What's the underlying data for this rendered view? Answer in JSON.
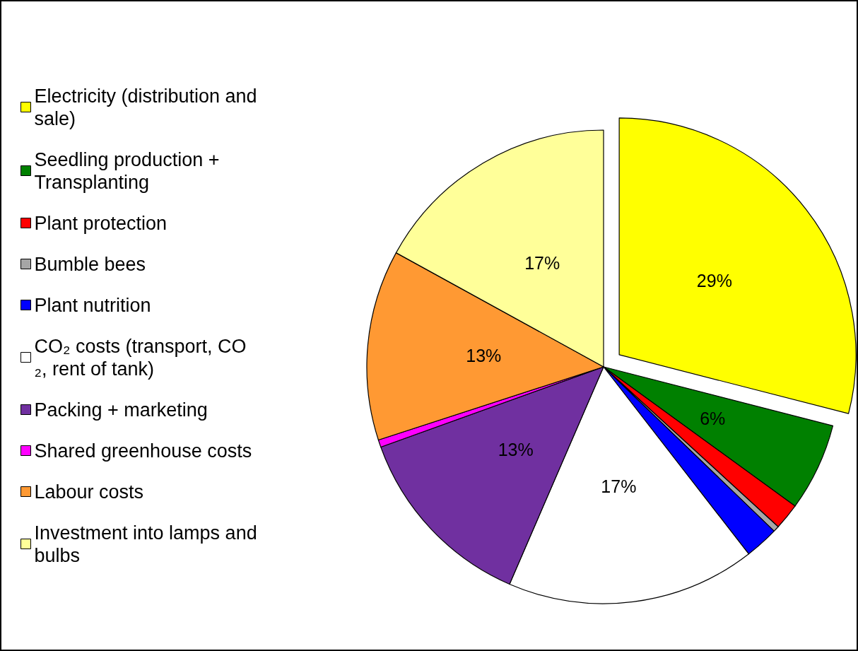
{
  "chart_data": {
    "type": "pie",
    "categories": [
      "Electricity (distribution and sale)",
      "Seedling production + Transplanting",
      "Plant protection",
      "Bumble bees",
      "Plant nutrition",
      "CO₂ costs (transport, CO₂, rent of tank)",
      "Packing + marketing",
      "Shared greenhouse costs",
      "Labour costs",
      "Investment into lamps and bulbs"
    ],
    "values": [
      29,
      6,
      1.8,
      0.4,
      2.3,
      17,
      13,
      0.5,
      13,
      17
    ],
    "colors": [
      "#ffff00",
      "#008000",
      "#ff0000",
      "#a6a6a6",
      "#0000ff",
      "#ffffff",
      "#7030a0",
      "#ff00ff",
      "#ff9933",
      "#ffff99"
    ],
    "value_labels": [
      "29%",
      "6%",
      null,
      null,
      null,
      "17%",
      "13%",
      null,
      "13%",
      "17%"
    ],
    "legend": "left"
  }
}
